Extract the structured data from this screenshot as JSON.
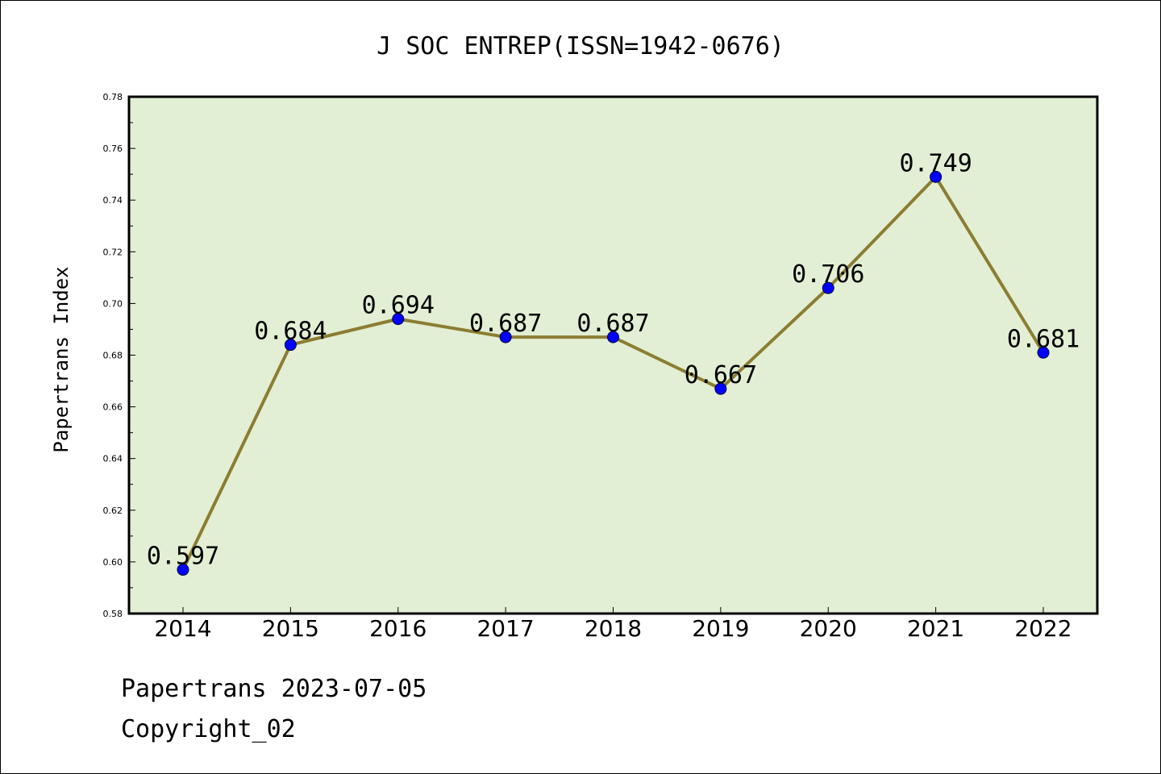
{
  "chart_data": {
    "type": "line",
    "title": "J SOC ENTREP(ISSN=1942-0676)",
    "xlabel": "",
    "ylabel": "Papertrans Index",
    "categories": [
      "2014",
      "2015",
      "2016",
      "2017",
      "2018",
      "2019",
      "2020",
      "2021",
      "2022"
    ],
    "series": [
      {
        "values": [
          0.597,
          0.684,
          0.694,
          0.687,
          0.687,
          0.667,
          0.706,
          0.749,
          0.681
        ],
        "labels": [
          "0.597",
          "0.684",
          "0.694",
          "0.687",
          "0.687",
          "0.667",
          "0.706",
          "0.749",
          "0.681"
        ],
        "line_color": "#8b7d32",
        "marker_color": "#0000ff"
      }
    ],
    "ylim": [
      0.58,
      0.78
    ],
    "yticks": [
      "0.58",
      "0.60",
      "0.62",
      "0.64",
      "0.66",
      "0.68",
      "0.70",
      "0.72",
      "0.74",
      "0.76",
      "0.78"
    ],
    "plot_background": "#e2efd4",
    "grid": false,
    "legend": "none"
  },
  "footer": {
    "line1": "Papertrans 2023-07-05",
    "line2": "Copyright_02"
  }
}
